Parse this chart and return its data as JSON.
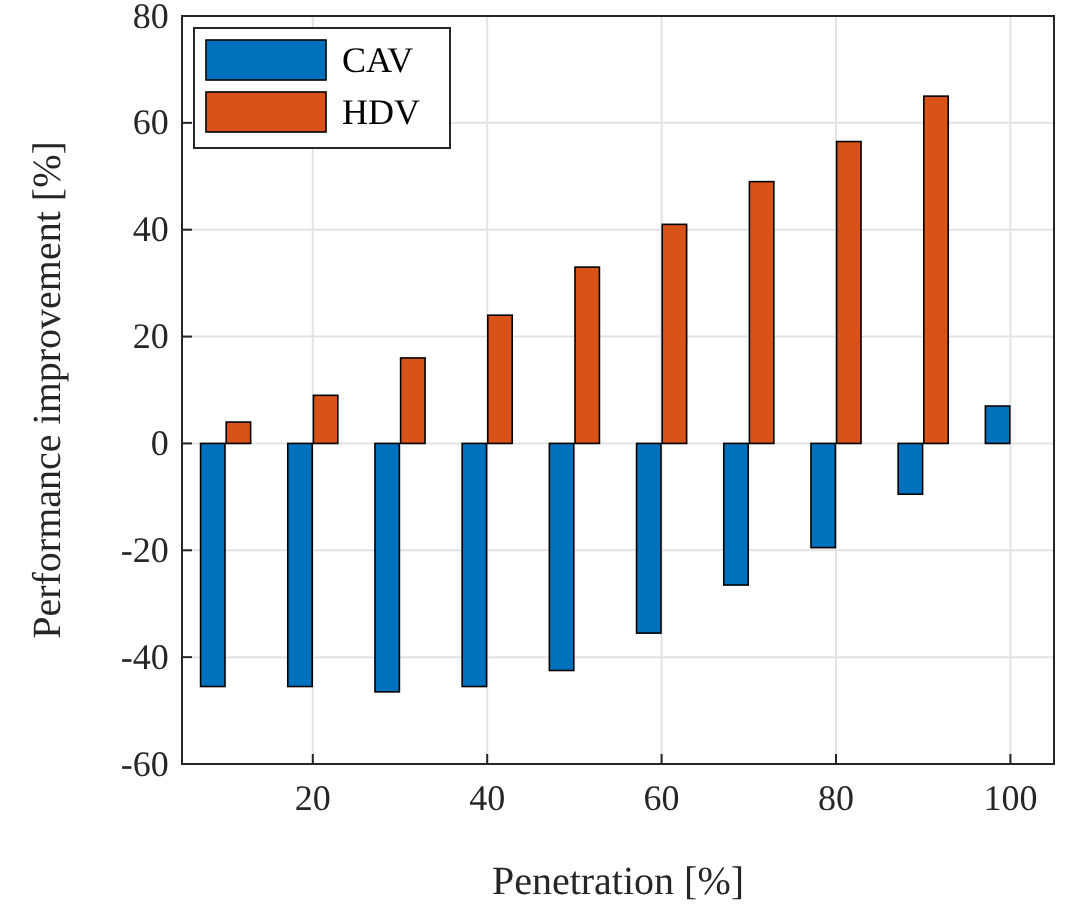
{
  "chart_data": {
    "type": "bar",
    "xlabel": "Penetration [%]",
    "ylabel": "Performance improvement [%]",
    "x": [
      10,
      20,
      30,
      40,
      50,
      60,
      70,
      80,
      90,
      100
    ],
    "series": [
      {
        "name": "CAV",
        "color": "#0072bd",
        "values": [
          -45.5,
          -45.5,
          -46.5,
          -45.5,
          -42.5,
          -35.5,
          -26.5,
          -19.5,
          -9.5,
          7
        ]
      },
      {
        "name": "HDV",
        "color": "#d95319",
        "values": [
          4,
          9,
          16,
          24,
          33,
          41,
          49,
          56.5,
          65,
          null
        ]
      }
    ],
    "xlim": [
      5,
      105
    ],
    "xticks": [
      20,
      40,
      60,
      80,
      100
    ],
    "ylim": [
      -60,
      80
    ],
    "yticks": [
      -60,
      -40,
      -20,
      0,
      20,
      40,
      60,
      80
    ],
    "grid": true,
    "legend": "top left"
  }
}
